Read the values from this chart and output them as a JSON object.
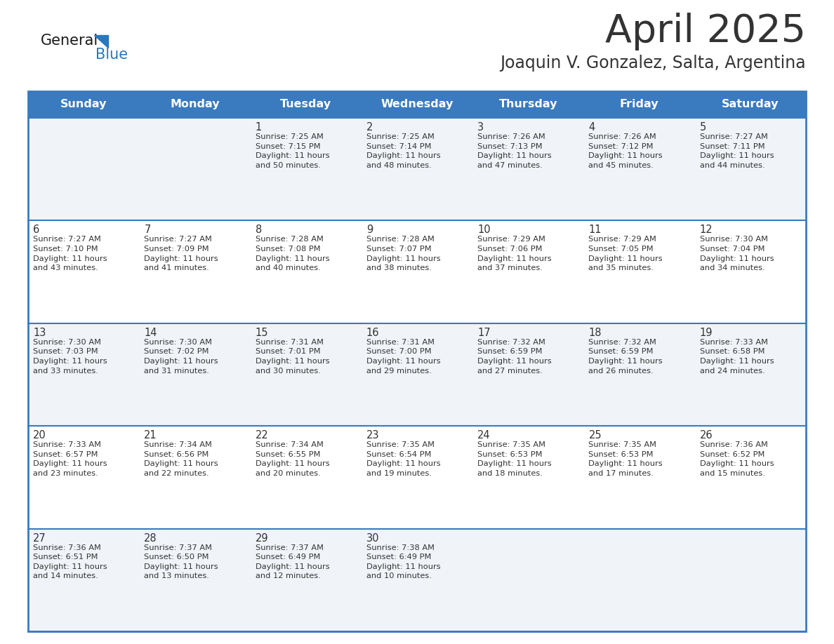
{
  "title": "April 2025",
  "subtitle": "Joaquin V. Gonzalez, Salta, Argentina",
  "header_bg": "#3a7abf",
  "header_text": "#ffffff",
  "days_of_week": [
    "Sunday",
    "Monday",
    "Tuesday",
    "Wednesday",
    "Thursday",
    "Friday",
    "Saturday"
  ],
  "row_bg_even": "#f0f4f8",
  "row_bg_odd": "#ffffff",
  "cell_text_color": "#333333",
  "border_color": "#3a7abf",
  "calendar": [
    [
      {
        "day": "",
        "info": ""
      },
      {
        "day": "",
        "info": ""
      },
      {
        "day": "1",
        "info": "Sunrise: 7:25 AM\nSunset: 7:15 PM\nDaylight: 11 hours\nand 50 minutes."
      },
      {
        "day": "2",
        "info": "Sunrise: 7:25 AM\nSunset: 7:14 PM\nDaylight: 11 hours\nand 48 minutes."
      },
      {
        "day": "3",
        "info": "Sunrise: 7:26 AM\nSunset: 7:13 PM\nDaylight: 11 hours\nand 47 minutes."
      },
      {
        "day": "4",
        "info": "Sunrise: 7:26 AM\nSunset: 7:12 PM\nDaylight: 11 hours\nand 45 minutes."
      },
      {
        "day": "5",
        "info": "Sunrise: 7:27 AM\nSunset: 7:11 PM\nDaylight: 11 hours\nand 44 minutes."
      }
    ],
    [
      {
        "day": "6",
        "info": "Sunrise: 7:27 AM\nSunset: 7:10 PM\nDaylight: 11 hours\nand 43 minutes."
      },
      {
        "day": "7",
        "info": "Sunrise: 7:27 AM\nSunset: 7:09 PM\nDaylight: 11 hours\nand 41 minutes."
      },
      {
        "day": "8",
        "info": "Sunrise: 7:28 AM\nSunset: 7:08 PM\nDaylight: 11 hours\nand 40 minutes."
      },
      {
        "day": "9",
        "info": "Sunrise: 7:28 AM\nSunset: 7:07 PM\nDaylight: 11 hours\nand 38 minutes."
      },
      {
        "day": "10",
        "info": "Sunrise: 7:29 AM\nSunset: 7:06 PM\nDaylight: 11 hours\nand 37 minutes."
      },
      {
        "day": "11",
        "info": "Sunrise: 7:29 AM\nSunset: 7:05 PM\nDaylight: 11 hours\nand 35 minutes."
      },
      {
        "day": "12",
        "info": "Sunrise: 7:30 AM\nSunset: 7:04 PM\nDaylight: 11 hours\nand 34 minutes."
      }
    ],
    [
      {
        "day": "13",
        "info": "Sunrise: 7:30 AM\nSunset: 7:03 PM\nDaylight: 11 hours\nand 33 minutes."
      },
      {
        "day": "14",
        "info": "Sunrise: 7:30 AM\nSunset: 7:02 PM\nDaylight: 11 hours\nand 31 minutes."
      },
      {
        "day": "15",
        "info": "Sunrise: 7:31 AM\nSunset: 7:01 PM\nDaylight: 11 hours\nand 30 minutes."
      },
      {
        "day": "16",
        "info": "Sunrise: 7:31 AM\nSunset: 7:00 PM\nDaylight: 11 hours\nand 29 minutes."
      },
      {
        "day": "17",
        "info": "Sunrise: 7:32 AM\nSunset: 6:59 PM\nDaylight: 11 hours\nand 27 minutes."
      },
      {
        "day": "18",
        "info": "Sunrise: 7:32 AM\nSunset: 6:59 PM\nDaylight: 11 hours\nand 26 minutes."
      },
      {
        "day": "19",
        "info": "Sunrise: 7:33 AM\nSunset: 6:58 PM\nDaylight: 11 hours\nand 24 minutes."
      }
    ],
    [
      {
        "day": "20",
        "info": "Sunrise: 7:33 AM\nSunset: 6:57 PM\nDaylight: 11 hours\nand 23 minutes."
      },
      {
        "day": "21",
        "info": "Sunrise: 7:34 AM\nSunset: 6:56 PM\nDaylight: 11 hours\nand 22 minutes."
      },
      {
        "day": "22",
        "info": "Sunrise: 7:34 AM\nSunset: 6:55 PM\nDaylight: 11 hours\nand 20 minutes."
      },
      {
        "day": "23",
        "info": "Sunrise: 7:35 AM\nSunset: 6:54 PM\nDaylight: 11 hours\nand 19 minutes."
      },
      {
        "day": "24",
        "info": "Sunrise: 7:35 AM\nSunset: 6:53 PM\nDaylight: 11 hours\nand 18 minutes."
      },
      {
        "day": "25",
        "info": "Sunrise: 7:35 AM\nSunset: 6:53 PM\nDaylight: 11 hours\nand 17 minutes."
      },
      {
        "day": "26",
        "info": "Sunrise: 7:36 AM\nSunset: 6:52 PM\nDaylight: 11 hours\nand 15 minutes."
      }
    ],
    [
      {
        "day": "27",
        "info": "Sunrise: 7:36 AM\nSunset: 6:51 PM\nDaylight: 11 hours\nand 14 minutes."
      },
      {
        "day": "28",
        "info": "Sunrise: 7:37 AM\nSunset: 6:50 PM\nDaylight: 11 hours\nand 13 minutes."
      },
      {
        "day": "29",
        "info": "Sunrise: 7:37 AM\nSunset: 6:49 PM\nDaylight: 11 hours\nand 12 minutes."
      },
      {
        "day": "30",
        "info": "Sunrise: 7:38 AM\nSunset: 6:49 PM\nDaylight: 11 hours\nand 10 minutes."
      },
      {
        "day": "",
        "info": ""
      },
      {
        "day": "",
        "info": ""
      },
      {
        "day": "",
        "info": ""
      }
    ]
  ],
  "logo_general_color": "#1a1a1a",
  "logo_blue_color": "#2878be",
  "title_fontsize": 40,
  "subtitle_fontsize": 17,
  "header_fontsize": 11.5,
  "day_num_fontsize": 10.5,
  "cell_info_fontsize": 8.2
}
